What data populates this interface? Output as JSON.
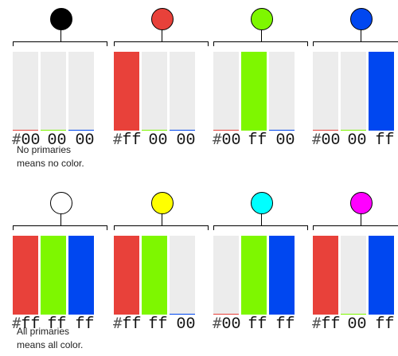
{
  "colors": {
    "red": "#e8413a",
    "green": "#7ef700",
    "blue": "#0047f0",
    "off": "#ececec"
  },
  "panels": [
    {
      "circle": "#000000",
      "hash": "#",
      "pairs": [
        "00",
        "00",
        "00"
      ],
      "on": [
        false,
        false,
        false
      ]
    },
    {
      "circle": "#e8413a",
      "hash": "#",
      "pairs": [
        "ff",
        "00",
        "00"
      ],
      "on": [
        true,
        false,
        false
      ]
    },
    {
      "circle": "#7ef700",
      "hash": "#",
      "pairs": [
        "00",
        "ff",
        "00"
      ],
      "on": [
        false,
        true,
        false
      ]
    },
    {
      "circle": "#0047f0",
      "hash": "#",
      "pairs": [
        "00",
        "00",
        "ff"
      ],
      "on": [
        false,
        false,
        true
      ]
    },
    {
      "circle": "#ffffff",
      "hash": "#",
      "pairs": [
        "ff",
        "ff",
        "ff"
      ],
      "on": [
        true,
        true,
        true
      ]
    },
    {
      "circle": "#ffff00",
      "hash": "#",
      "pairs": [
        "ff",
        "ff",
        "00"
      ],
      "on": [
        true,
        true,
        false
      ]
    },
    {
      "circle": "#00ffff",
      "hash": "#",
      "pairs": [
        "00",
        "ff",
        "ff"
      ],
      "on": [
        false,
        true,
        true
      ]
    },
    {
      "circle": "#ff00ff",
      "hash": "#",
      "pairs": [
        "ff",
        "00",
        "ff"
      ],
      "on": [
        true,
        false,
        true
      ]
    }
  ],
  "notes": {
    "none_line1": "No primaries",
    "none_line2": "means no color.",
    "all_line1": "All primaries",
    "all_line2": "means all color."
  }
}
